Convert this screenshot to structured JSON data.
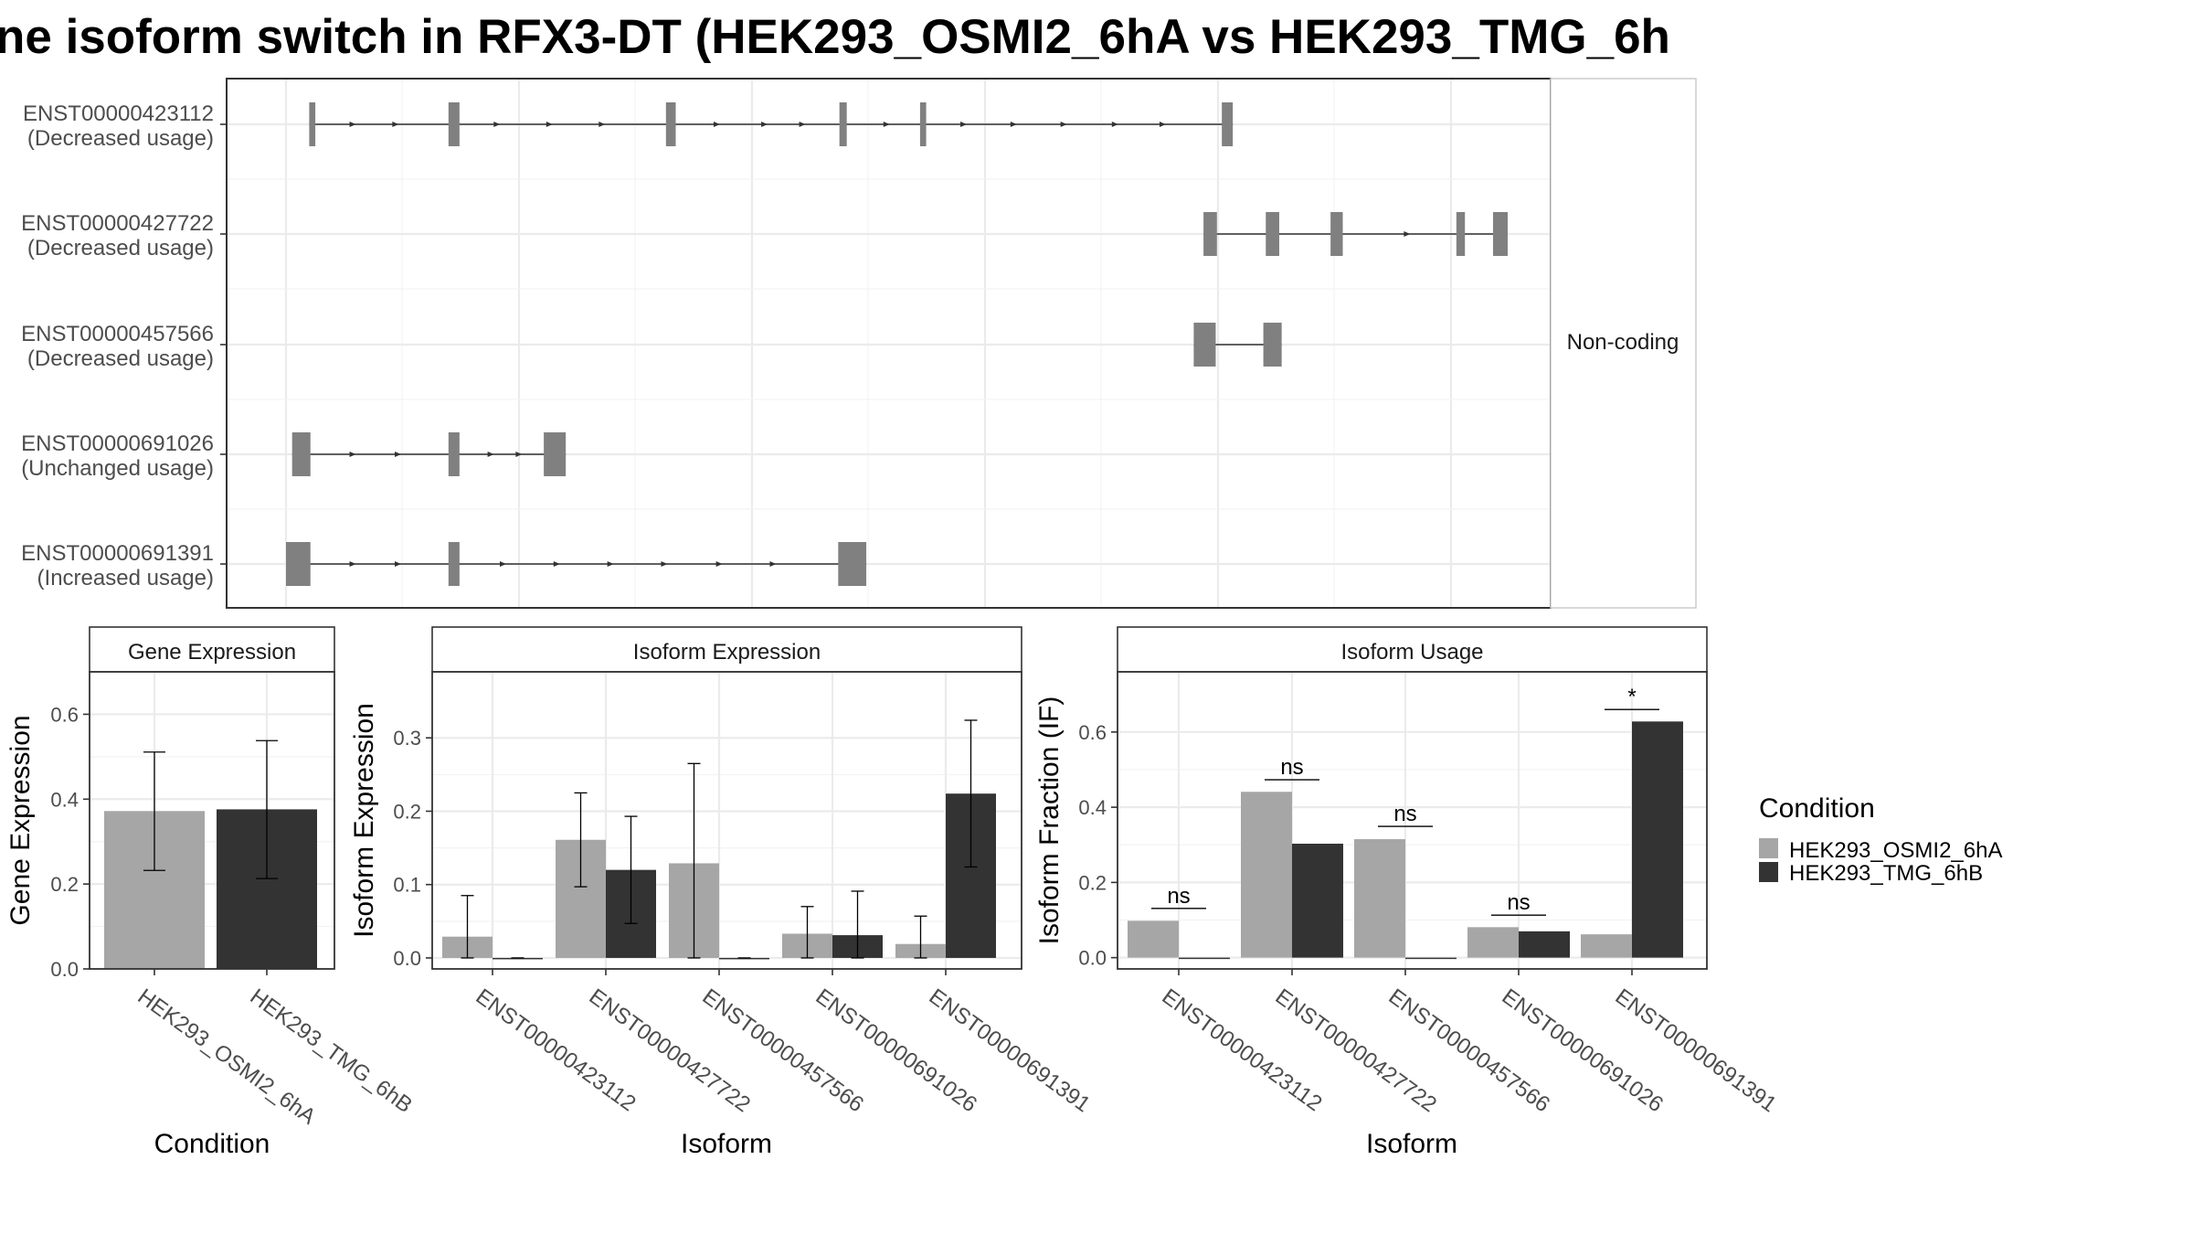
{
  "title": "ne isoform switch in RFX3-DT (HEK293_OSMI2_6hA vs HEK293_TMG_6h",
  "colors": {
    "osmi": "#a6a6a6",
    "tmg": "#333333",
    "exon": "#808080",
    "grid": "#ebebeb",
    "frame": "#333333"
  },
  "structure": {
    "strip_label": "Non-coding",
    "isoforms": [
      {
        "id": "ENST00000423112",
        "usage": "(Decreased usage)",
        "exons": [
          [
            0.019,
            0.024
          ],
          [
            0.133,
            0.142
          ],
          [
            0.311,
            0.319
          ],
          [
            0.453,
            0.459
          ],
          [
            0.519,
            0.524
          ],
          [
            0.766,
            0.775
          ]
        ],
        "arrows": [
          0.055,
          0.09,
          0.173,
          0.216,
          0.259,
          0.353,
          0.392,
          0.423,
          0.492,
          0.555,
          0.596,
          0.637,
          0.679,
          0.718
        ]
      },
      {
        "id": "ENST00000427722",
        "usage": "(Decreased usage)",
        "exons": [
          [
            0.751,
            0.762
          ],
          [
            0.802,
            0.813
          ],
          [
            0.855,
            0.865
          ],
          [
            0.958,
            0.965
          ],
          [
            0.988,
            1.0
          ]
        ],
        "arrows": [
          0.918
        ]
      },
      {
        "id": "ENST00000457566",
        "usage": "(Decreased usage)",
        "exons": [
          [
            0.743,
            0.761
          ],
          [
            0.8,
            0.815
          ]
        ],
        "arrows": []
      },
      {
        "id": "ENST00000691026",
        "usage": "(Unchanged usage)",
        "exons": [
          [
            0.005,
            0.02
          ],
          [
            0.133,
            0.142
          ],
          [
            0.211,
            0.229
          ]
        ],
        "arrows": [
          0.055,
          0.092,
          0.168,
          0.191
        ]
      },
      {
        "id": "ENST00000691391",
        "usage": "(Increased usage)",
        "exons": [
          [
            0.0,
            0.02
          ],
          [
            0.133,
            0.142
          ],
          [
            0.452,
            0.475
          ]
        ],
        "arrows": [
          0.055,
          0.092,
          0.178,
          0.222,
          0.266,
          0.31,
          0.355,
          0.399
        ]
      }
    ]
  },
  "chart_data": [
    {
      "type": "bar",
      "title": "Gene Expression",
      "xlabel": "Condition",
      "ylabel": "Gene Expression",
      "categories": [
        "HEK293_OSMI2_6hA",
        "HEK293_TMG_6hB"
      ],
      "series": [
        {
          "name": "HEK293_OSMI2_6hA",
          "values": [
            0.372,
            null
          ],
          "err_low": [
            0.232,
            null
          ],
          "err_high": [
            0.511,
            null
          ]
        },
        {
          "name": "HEK293_TMG_6hB",
          "values": [
            null,
            0.376
          ],
          "err_low": [
            null,
            0.213
          ],
          "err_high": [
            null,
            0.538
          ]
        }
      ],
      "ylim": [
        0,
        0.7
      ],
      "yticks": [
        0.0,
        0.2,
        0.4,
        0.6
      ],
      "ytick_labels": [
        "0.0",
        "0.2",
        "0.4",
        "0.6"
      ]
    },
    {
      "type": "bar",
      "title": "Isoform Expression",
      "xlabel": "Isoform",
      "ylabel": "Isoform Expression",
      "categories": [
        "ENST00000423112",
        "ENST00000427722",
        "ENST00000457566",
        "ENST00000691026",
        "ENST00000691391"
      ],
      "series": [
        {
          "name": "HEK293_OSMI2_6hA",
          "values": [
            0.029,
            0.161,
            0.129,
            0.033,
            0.019
          ],
          "err_low": [
            0.0,
            0.097,
            0.0,
            0.0,
            0.0
          ],
          "err_high": [
            0.085,
            0.225,
            0.265,
            0.07,
            0.057
          ]
        },
        {
          "name": "HEK293_TMG_6hB",
          "values": [
            0.0,
            0.12,
            0.0,
            0.031,
            0.224
          ],
          "err_low": [
            0.0,
            0.047,
            0.0,
            0.0,
            0.124
          ],
          "err_high": [
            0.0,
            0.193,
            0.0,
            0.091,
            0.324
          ]
        }
      ],
      "ylim": [
        -0.015,
        0.39
      ],
      "yticks": [
        0.0,
        0.1,
        0.2,
        0.3
      ],
      "ytick_labels": [
        "0.0",
        "0.1",
        "0.2",
        "0.3"
      ]
    },
    {
      "type": "bar",
      "title": "Isoform Usage",
      "xlabel": "Isoform",
      "ylabel": "Isoform Fraction (IF)",
      "categories": [
        "ENST00000423112",
        "ENST00000427722",
        "ENST00000457566",
        "ENST00000691026",
        "ENST00000691391"
      ],
      "series": [
        {
          "name": "HEK293_OSMI2_6hA",
          "values": [
            0.098,
            0.441,
            0.315,
            0.081,
            0.062
          ]
        },
        {
          "name": "HEK293_TMG_6hB",
          "values": [
            0.0,
            0.303,
            0.0,
            0.07,
            0.628
          ]
        }
      ],
      "significance": [
        {
          "label": "ns",
          "y": 0.131
        },
        {
          "label": "ns",
          "y": 0.473
        },
        {
          "label": "ns",
          "y": 0.349
        },
        {
          "label": "ns",
          "y": 0.113
        },
        {
          "label": "*",
          "y": 0.66
        }
      ],
      "ylim": [
        -0.03,
        0.76
      ],
      "yticks": [
        0.0,
        0.2,
        0.4,
        0.6
      ],
      "ytick_labels": [
        "0.0",
        "0.2",
        "0.4",
        "0.6"
      ]
    }
  ],
  "legend": {
    "title": "Condition",
    "items": [
      {
        "label": "HEK293_OSMI2_6hA",
        "color": "#a6a6a6"
      },
      {
        "label": "HEK293_TMG_6hB",
        "color": "#333333"
      }
    ]
  }
}
